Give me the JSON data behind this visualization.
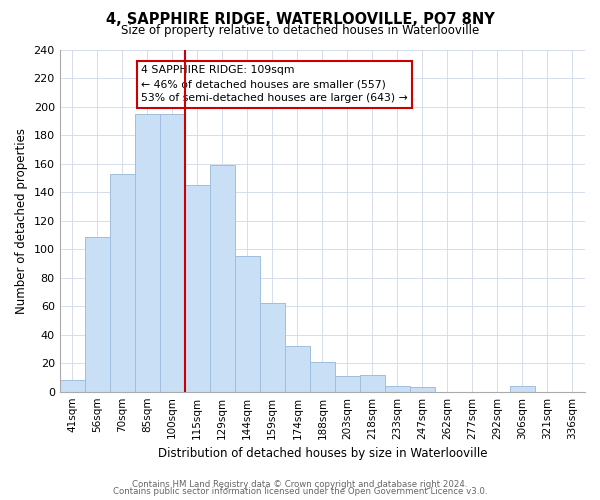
{
  "title": "4, SAPPHIRE RIDGE, WATERLOOVILLE, PO7 8NY",
  "subtitle": "Size of property relative to detached houses in Waterlooville",
  "xlabel": "Distribution of detached houses by size in Waterlooville",
  "ylabel": "Number of detached properties",
  "footer_line1": "Contains HM Land Registry data © Crown copyright and database right 2024.",
  "footer_line2": "Contains public sector information licensed under the Open Government Licence v3.0.",
  "bin_labels": [
    "41sqm",
    "56sqm",
    "70sqm",
    "85sqm",
    "100sqm",
    "115sqm",
    "129sqm",
    "144sqm",
    "159sqm",
    "174sqm",
    "188sqm",
    "203sqm",
    "218sqm",
    "233sqm",
    "247sqm",
    "262sqm",
    "277sqm",
    "292sqm",
    "306sqm",
    "321sqm",
    "336sqm"
  ],
  "bar_heights": [
    8,
    109,
    153,
    195,
    195,
    145,
    159,
    95,
    62,
    32,
    21,
    11,
    12,
    4,
    3,
    0,
    0,
    0,
    4,
    0,
    0
  ],
  "bar_color": "#c9dff5",
  "bar_edge_color": "#a0bedd",
  "vline_color": "#cc0000",
  "annotation_box_color": "#ffffff",
  "annotation_box_edgecolor": "#cc0000",
  "ylim": [
    0,
    240
  ],
  "yticks": [
    0,
    20,
    40,
    60,
    80,
    100,
    120,
    140,
    160,
    180,
    200,
    220,
    240
  ],
  "background_color": "#ffffff",
  "grid_color": "#d0d8e8"
}
